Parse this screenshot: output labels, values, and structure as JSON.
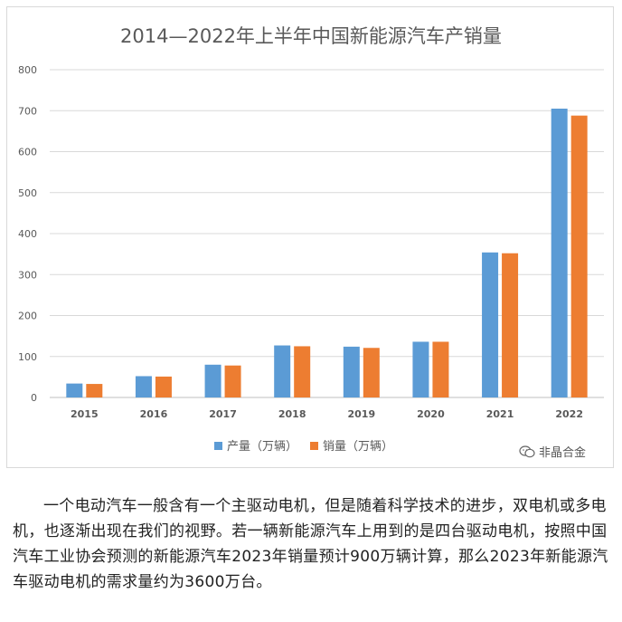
{
  "chart_data": {
    "type": "bar",
    "title": "2014—2022年上半年中国新能源汽车产销量",
    "categories": [
      "2015",
      "2016",
      "2017",
      "2018",
      "2019",
      "2020",
      "2021",
      "2022"
    ],
    "series": [
      {
        "name": "产量（万辆）",
        "color": "#5B9BD5",
        "values": [
          34,
          52,
          80,
          127,
          124,
          136,
          354,
          705
        ]
      },
      {
        "name": "销量（万辆）",
        "color": "#ED7D31",
        "values": [
          33,
          51,
          78,
          125,
          121,
          136,
          352,
          688
        ]
      }
    ],
    "ylim": [
      0,
      800
    ],
    "yticks": [
      0,
      100,
      200,
      300,
      400,
      500,
      600,
      700,
      800
    ],
    "grid": true,
    "legend": "bottom"
  },
  "watermark": {
    "text": "非晶合金",
    "icon": "wechat-logo"
  },
  "article": {
    "text": "一个电动汽车一般含有一个主驱动电机，但是随着科学技术的进步，双电机或多电机，也逐渐出现在我们的视野。若一辆新能源汽车上用到的是四台驱动电机，按照中国汽车工业协会预测的新能源汽车2023年销量预计900万辆计算，那么2023年新能源汽车驱动电机的需求量约为3600万台。"
  }
}
